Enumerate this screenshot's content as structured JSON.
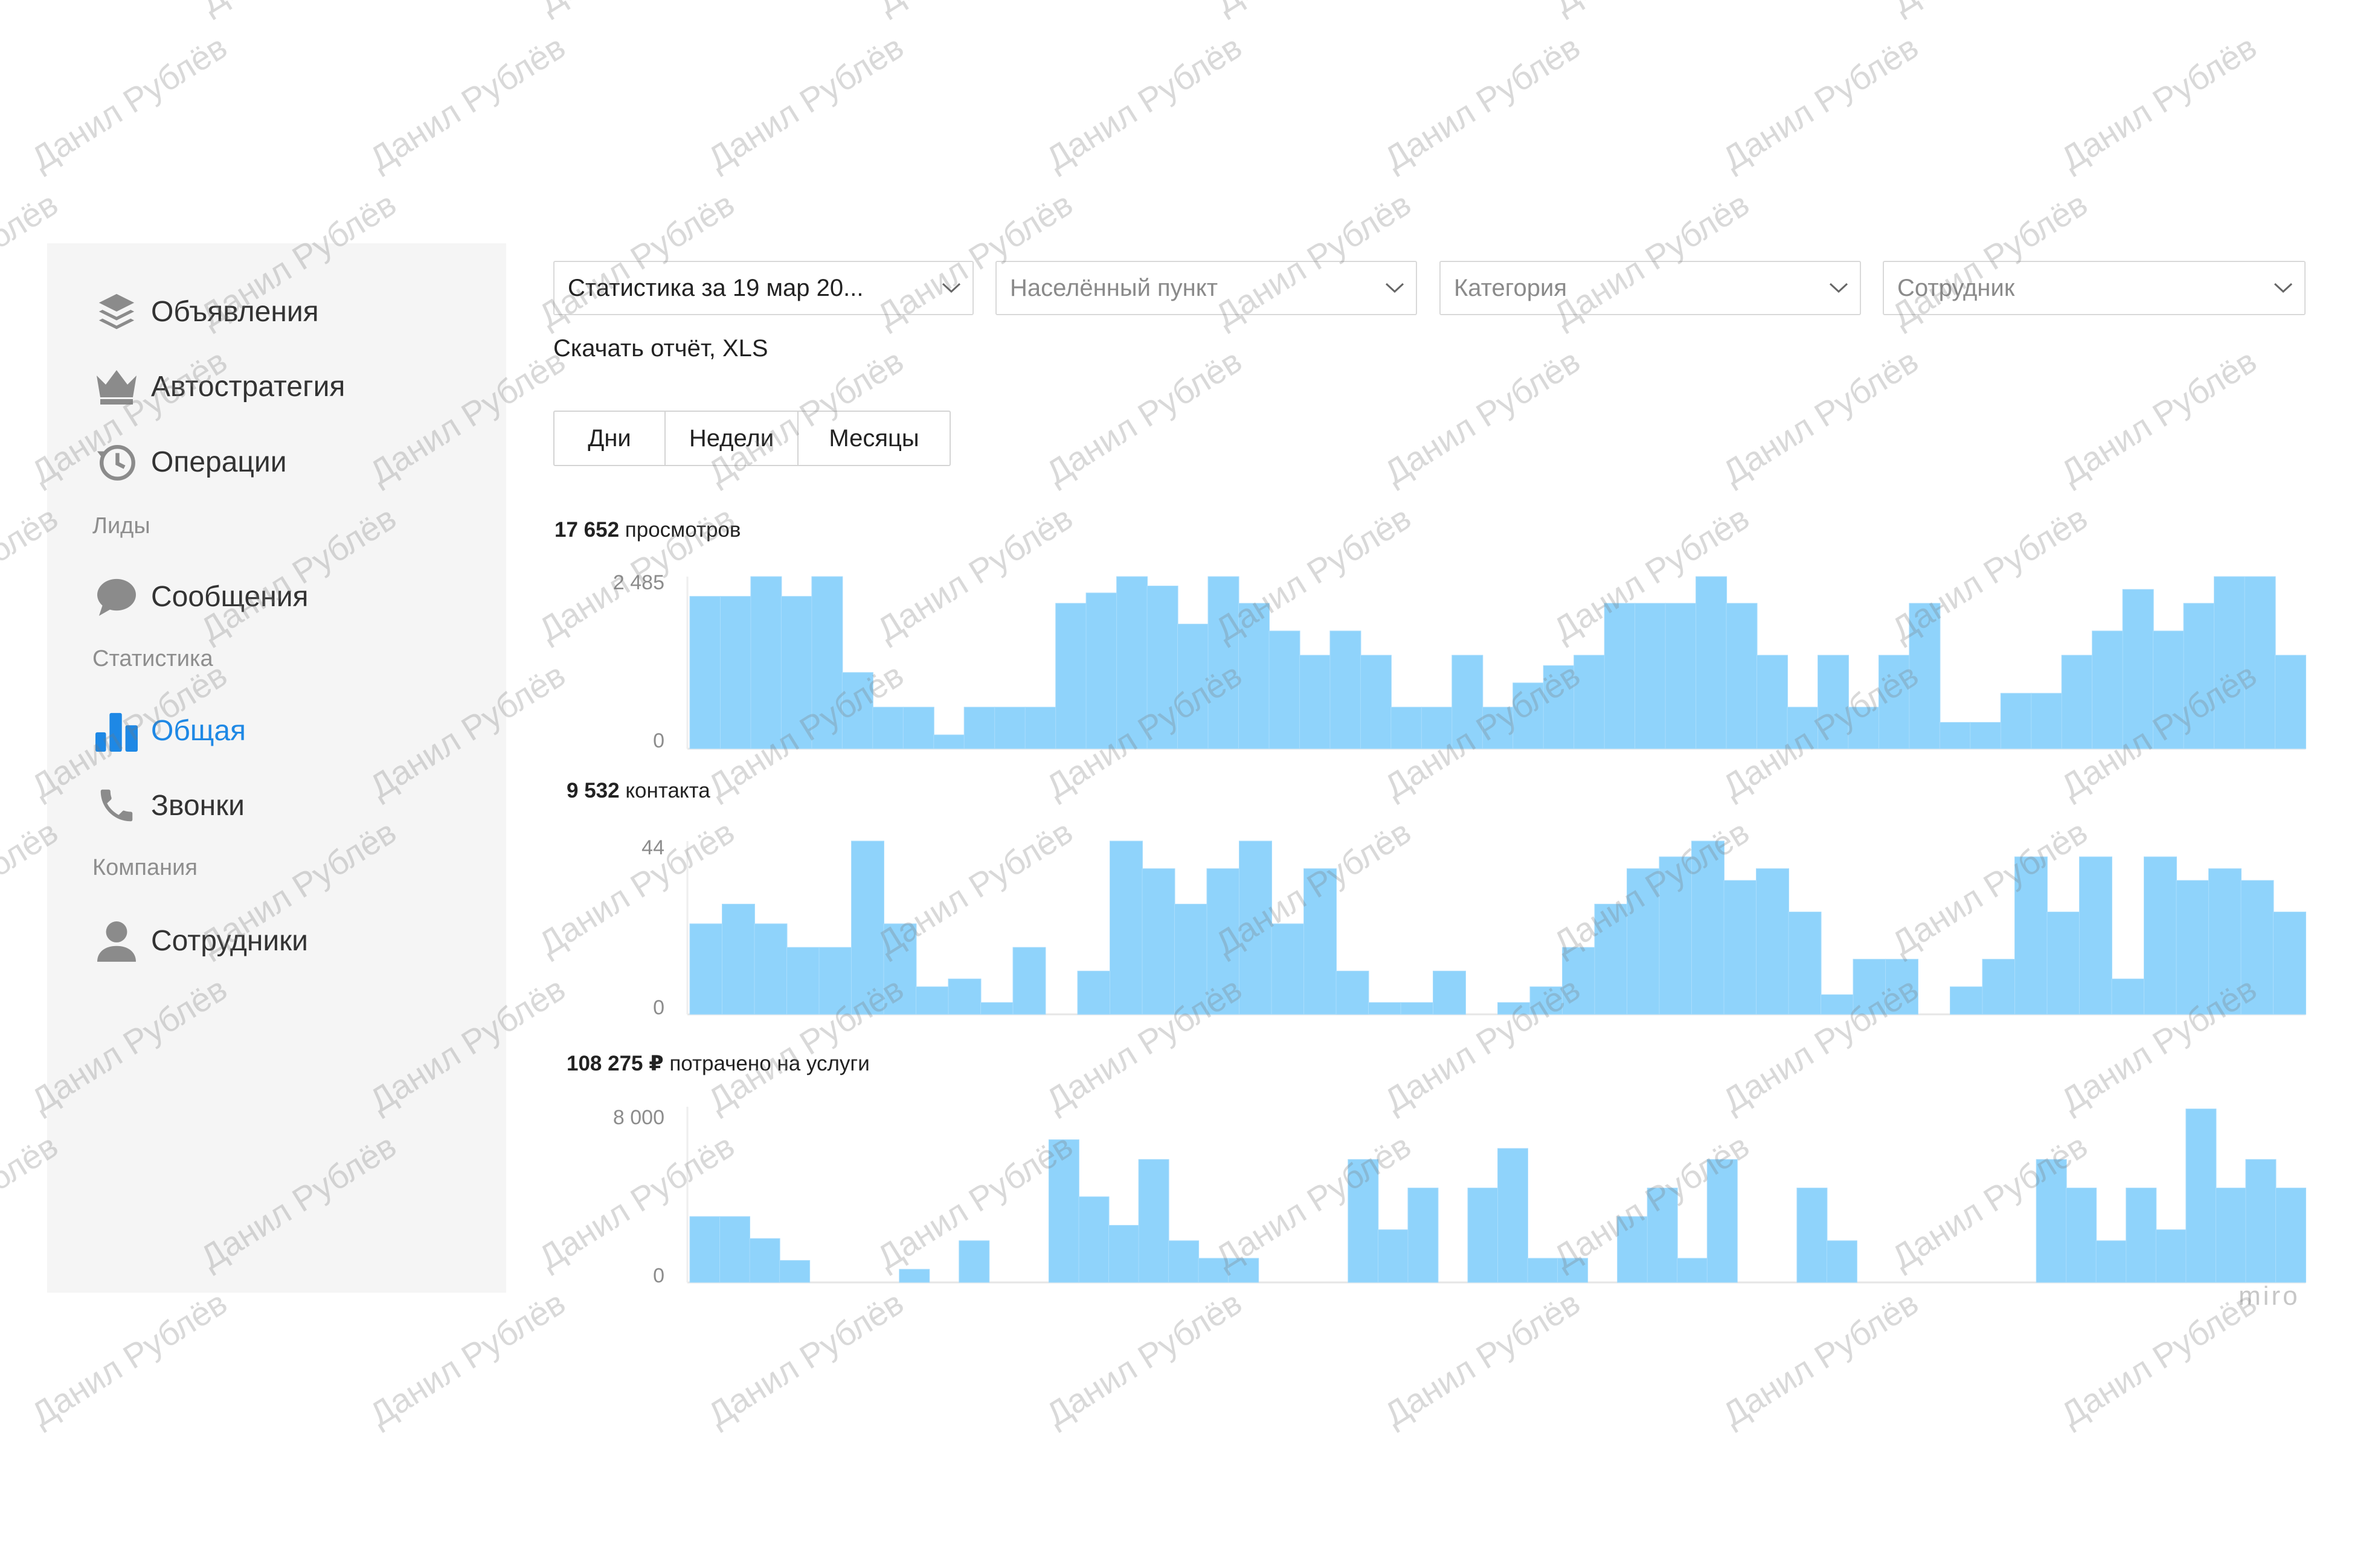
{
  "sidebar": {
    "items": [
      {
        "id": "ads",
        "label": "Объявления",
        "icon": "layers-icon"
      },
      {
        "id": "autostrategy",
        "label": "Автостратегия",
        "icon": "crown-icon"
      },
      {
        "id": "operations",
        "label": "Операции",
        "icon": "history-icon"
      }
    ],
    "section_leads": "Лиды",
    "leads_items": [
      {
        "id": "messages",
        "label": "Сообщения",
        "icon": "chat-bubble-icon"
      }
    ],
    "section_stats": "Статистика",
    "stats_items": [
      {
        "id": "general",
        "label": "Общая",
        "icon": "bar-chart-icon",
        "active": true
      },
      {
        "id": "calls",
        "label": "Звонки",
        "icon": "phone-icon"
      }
    ],
    "section_company": "Компания",
    "company_items": [
      {
        "id": "employees",
        "label": "Сотрудники",
        "icon": "user-icon"
      }
    ]
  },
  "filters": {
    "period": "Статистика за 19 мар 20...",
    "locality": "Населённый пункт",
    "category": "Категория",
    "employee": "Сотрудник"
  },
  "download_label": "Скачать отчёт, XLS",
  "period_tabs": [
    "Дни",
    "Недели",
    "Месяцы"
  ],
  "stats": {
    "views": {
      "value": "17 652",
      "label": "просмотров"
    },
    "contacts": {
      "value": "9 532",
      "label": "контакта"
    },
    "spent": {
      "value": "108 275 ₽",
      "label": "потрачено на услуги"
    }
  },
  "chart_data": [
    {
      "type": "bar",
      "ylabel": "",
      "xlabel": "",
      "ylim": [
        0,
        2485
      ],
      "yticks": [
        "0",
        "2 485"
      ],
      "values": [
        2200,
        2200,
        2485,
        2200,
        2485,
        1100,
        600,
        600,
        200,
        600,
        600,
        600,
        2100,
        2250,
        2485,
        2350,
        1800,
        2485,
        2100,
        1700,
        1350,
        1700,
        1350,
        600,
        600,
        1350,
        600,
        950,
        1200,
        1350,
        2100,
        2100,
        2100,
        2485,
        2100,
        1350,
        600,
        1350,
        600,
        1350,
        2100,
        380,
        380,
        800,
        800,
        1350,
        1700,
        2300,
        1700,
        2100,
        2485,
        2485,
        1350
      ]
    },
    {
      "type": "bar",
      "ylabel": "",
      "xlabel": "",
      "ylim": [
        0,
        44
      ],
      "yticks": [
        "0",
        "44"
      ],
      "values": [
        23,
        28,
        23,
        17,
        17,
        44,
        23,
        7,
        9,
        3,
        17,
        0,
        11,
        44,
        37,
        28,
        37,
        44,
        23,
        37,
        11,
        3,
        3,
        11,
        0,
        3,
        7,
        17,
        28,
        37,
        40,
        44,
        34,
        37,
        26,
        5,
        14,
        14,
        0,
        7,
        14,
        40,
        26,
        40,
        9,
        40,
        34,
        37,
        34,
        26
      ]
    },
    {
      "type": "bar",
      "ylabel": "",
      "xlabel": "",
      "ylim": [
        0,
        8000
      ],
      "yticks": [
        "0",
        "8 000"
      ],
      "values": [
        3000,
        3000,
        2000,
        1000,
        0,
        0,
        0,
        600,
        0,
        1900,
        0,
        0,
        6500,
        3900,
        2600,
        5600,
        1900,
        1100,
        1100,
        0,
        0,
        0,
        5600,
        2400,
        4300,
        0,
        4300,
        6100,
        1100,
        1100,
        0,
        3000,
        4300,
        1100,
        5600,
        0,
        0,
        4300,
        1900,
        0,
        0,
        0,
        0,
        0,
        0,
        5600,
        4300,
        1900,
        4300,
        2400,
        7900,
        4300,
        5600,
        4300
      ]
    }
  ],
  "watermark_text": "Данил Рублёв",
  "brand": "miro",
  "colors": {
    "accent": "#1e88e5",
    "bar": "#8fd3fb",
    "sidebar_bg": "#f5f5f5"
  }
}
